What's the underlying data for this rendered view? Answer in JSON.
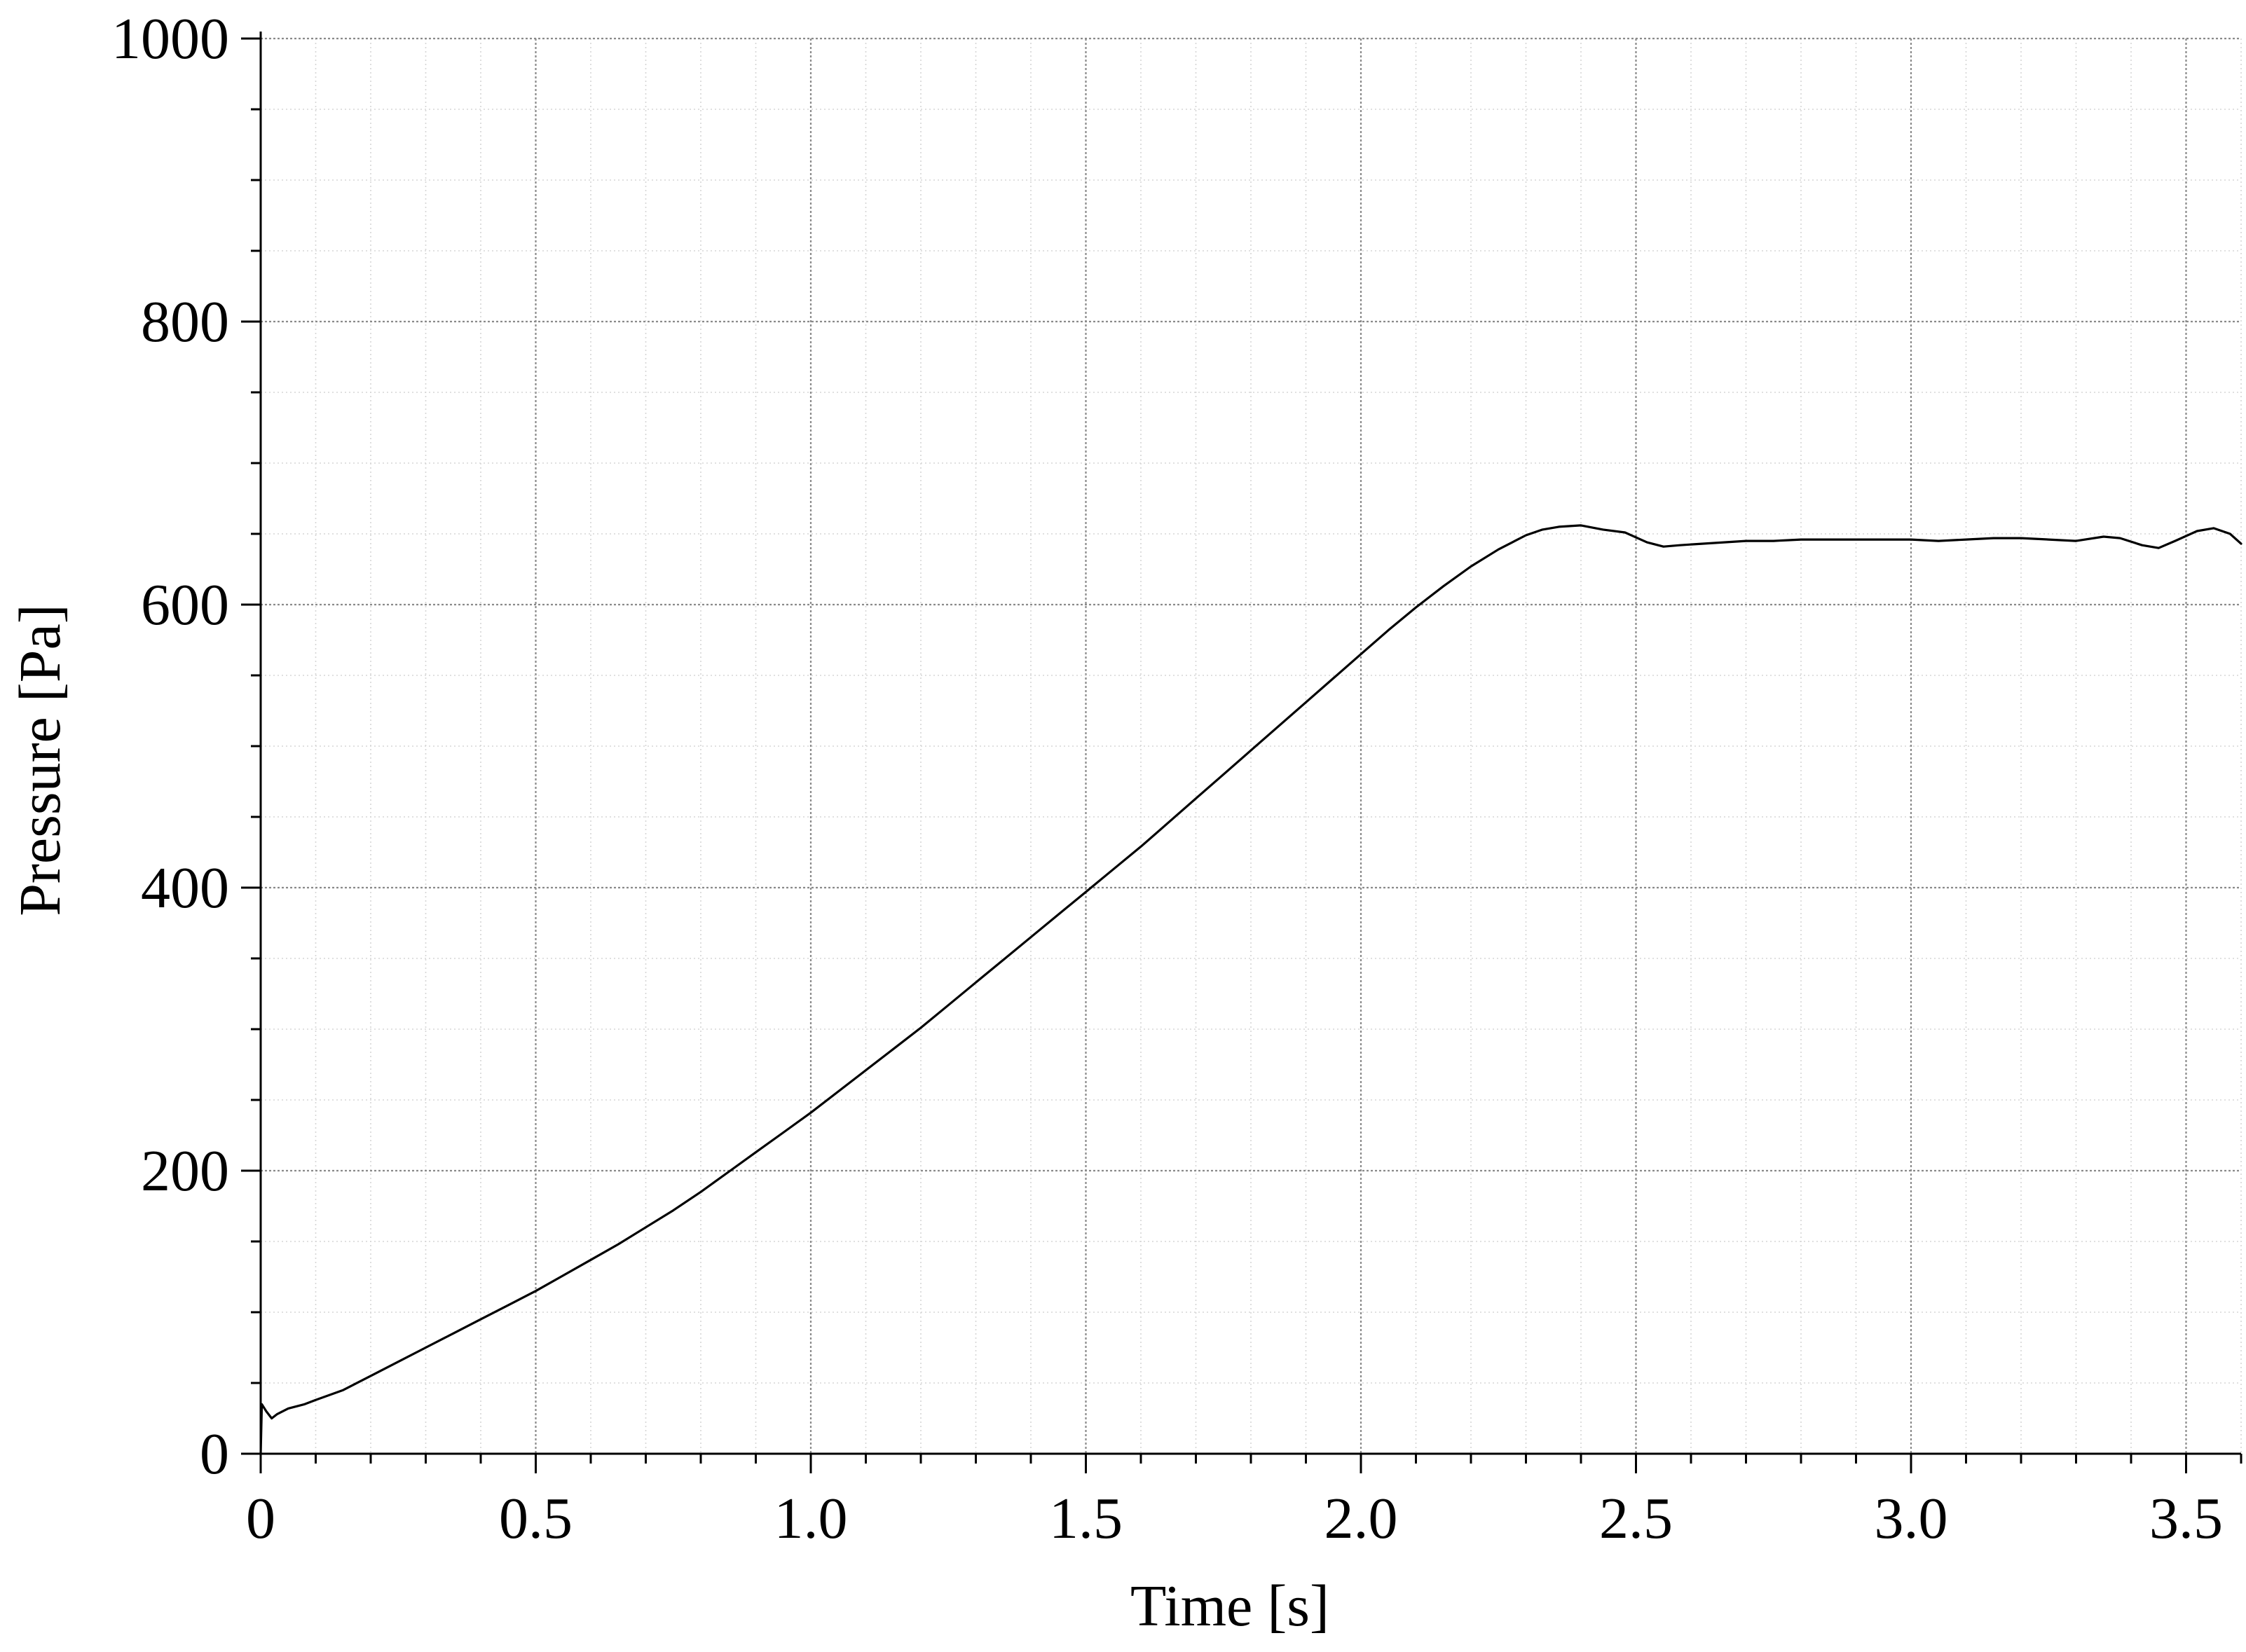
{
  "chart_data": {
    "type": "line",
    "title": "",
    "xlabel": "Time [s]",
    "ylabel": "Pressure [Pa]",
    "xlim": [
      0,
      3.6
    ],
    "ylim": [
      0,
      1000
    ],
    "x_ticks": [
      0,
      0.5,
      1.0,
      1.5,
      2.0,
      2.5,
      3.0,
      3.5
    ],
    "x_tick_labels": [
      "0",
      "0.5",
      "1.0",
      "1.5",
      "2.0",
      "2.5",
      "3.0",
      "3.5"
    ],
    "y_ticks": [
      0,
      200,
      400,
      600,
      800,
      1000
    ],
    "y_tick_labels": [
      "0",
      "200",
      "400",
      "600",
      "800",
      "1000"
    ],
    "x_minor_step": 0.1,
    "y_minor_step": 50,
    "grid": true,
    "legend": "none",
    "line_color": "#000000",
    "grid_color": "#9a9a9a",
    "series": [
      {
        "x": [
          0,
          0.002,
          0.01,
          0.02,
          0.03,
          0.05,
          0.08,
          0.1,
          0.15,
          0.2,
          0.25,
          0.3,
          0.35,
          0.4,
          0.45,
          0.5,
          0.55,
          0.6,
          0.65,
          0.7,
          0.75,
          0.8,
          0.85,
          0.9,
          0.95,
          1.0,
          1.05,
          1.1,
          1.15,
          1.2,
          1.25,
          1.3,
          1.35,
          1.4,
          1.45,
          1.5,
          1.55,
          1.6,
          1.65,
          1.7,
          1.75,
          1.8,
          1.85,
          1.9,
          1.95,
          2.0,
          2.05,
          2.1,
          2.15,
          2.2,
          2.25,
          2.28,
          2.3,
          2.33,
          2.36,
          2.4,
          2.44,
          2.48,
          2.52,
          2.55,
          2.58,
          2.62,
          2.66,
          2.7,
          2.75,
          2.8,
          2.85,
          2.9,
          2.95,
          3.0,
          3.05,
          3.1,
          3.15,
          3.2,
          3.25,
          3.3,
          3.35,
          3.38,
          3.42,
          3.45,
          3.48,
          3.52,
          3.55,
          3.58,
          3.6
        ],
        "y": [
          0,
          35,
          30,
          25,
          28,
          32,
          35,
          38,
          45,
          55,
          65,
          75,
          85,
          95,
          105,
          115,
          126,
          137,
          148,
          160,
          172,
          185,
          199,
          213,
          227,
          241,
          256,
          271,
          286,
          301,
          317,
          333,
          349,
          365,
          381,
          397,
          413,
          429,
          446,
          463,
          480,
          497,
          514,
          531,
          548,
          565,
          582,
          598,
          613,
          627,
          639,
          645,
          649,
          653,
          655,
          656,
          653,
          651,
          644,
          641,
          642,
          643,
          644,
          645,
          645,
          646,
          646,
          646,
          646,
          646,
          645,
          646,
          647,
          647,
          646,
          645,
          648,
          647,
          642,
          640,
          645,
          652,
          654,
          650,
          643
        ]
      }
    ]
  }
}
